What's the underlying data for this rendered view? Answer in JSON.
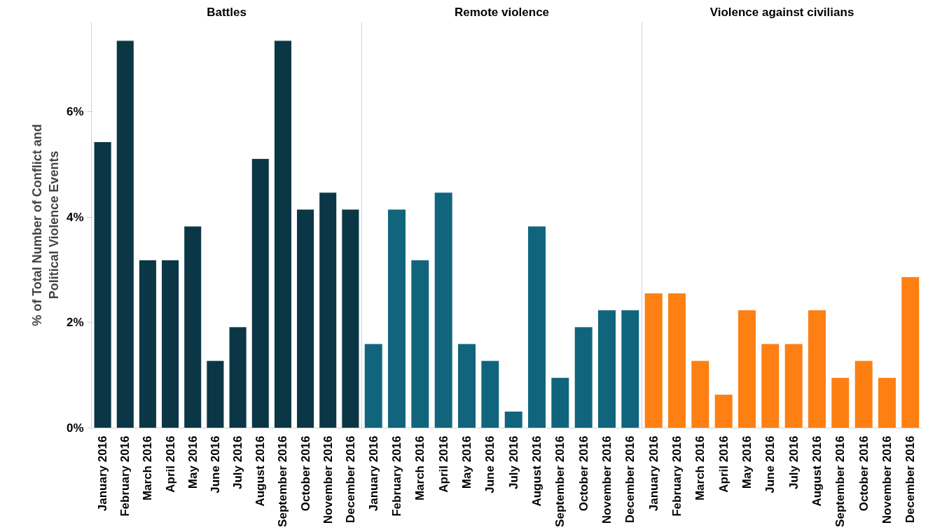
{
  "chart_data": [
    {
      "type": "bar",
      "title": "Battles",
      "ylabel": "% of Total Number of Conflict and\nPolitical Violence Events",
      "categories": [
        "January 2016",
        "February 2016",
        "March 2016",
        "April 2016",
        "May 2016",
        "June 2016",
        "July 2016",
        "August 2016",
        "September 2016",
        "October 2016",
        "November 2016",
        "December 2016"
      ],
      "color": "#0b3646",
      "values": [
        5.43,
        7.35,
        3.19,
        3.19,
        3.83,
        1.28,
        1.92,
        5.11,
        7.35,
        4.15,
        4.47,
        4.15
      ],
      "ylim": [
        0,
        7.7
      ],
      "yticks": [
        {
          "value": 0,
          "label": "0%"
        },
        {
          "value": 2,
          "label": "2%"
        },
        {
          "value": 4,
          "label": "4%"
        },
        {
          "value": 6,
          "label": "6%"
        }
      ],
      "grid": false
    },
    {
      "type": "bar",
      "title": "Remote violence",
      "categories": [
        "January 2016",
        "February 2016",
        "March 2016",
        "April 2016",
        "May 2016",
        "June 2016",
        "July 2016",
        "August 2016",
        "September 2016",
        "October 2016",
        "November 2016",
        "December 2016"
      ],
      "color": "#10657c",
      "values": [
        1.6,
        4.15,
        3.19,
        4.47,
        1.6,
        1.28,
        0.32,
        3.83,
        0.96,
        1.92,
        2.24,
        2.24
      ],
      "ylim": [
        0,
        7.7
      ],
      "grid": false,
      "tick_labels": "x"
    },
    {
      "type": "bar",
      "title": "Violence against civilians",
      "categories": [
        "January 2016",
        "February 2016",
        "March 2016",
        "April 2016",
        "May 2016",
        "June 2016",
        "July 2016",
        "August 2016",
        "September 2016",
        "October 2016",
        "November 2016",
        "December 2016"
      ],
      "color": "#fe7f12",
      "values": [
        2.56,
        2.56,
        1.28,
        0.64,
        2.24,
        1.6,
        1.6,
        2.24,
        0.96,
        1.28,
        0.96,
        2.87
      ],
      "ylim": [
        0,
        7.7
      ],
      "grid": false,
      "tick_labels": "x"
    }
  ]
}
